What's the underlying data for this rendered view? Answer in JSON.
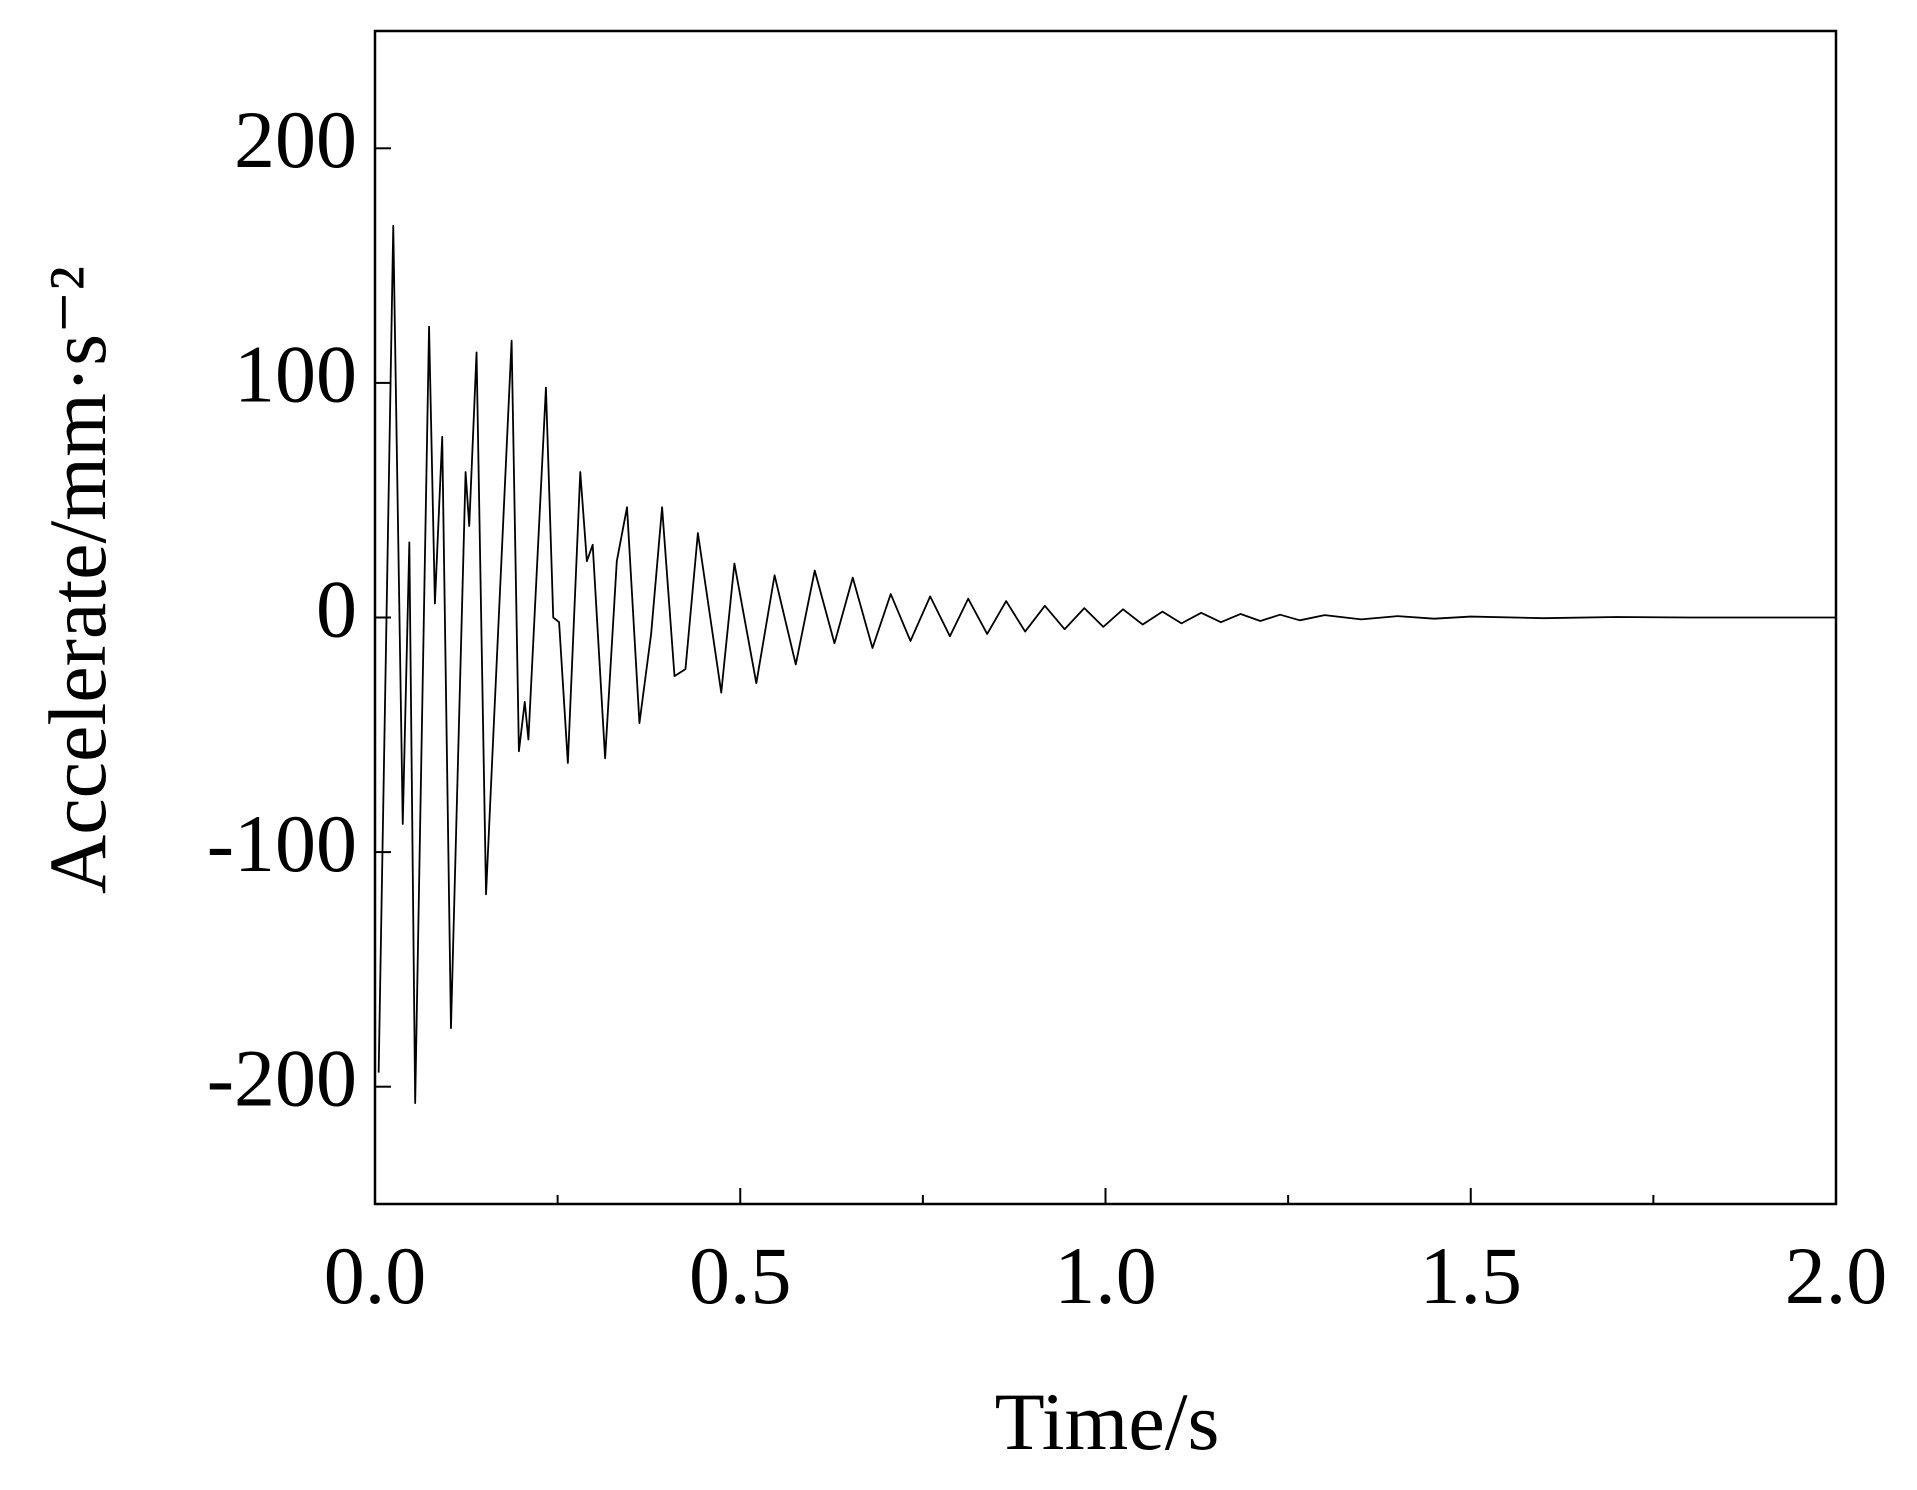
{
  "chart_data": {
    "type": "line",
    "xlabel": "Time/s",
    "ylabel": "Accelerate/mm·s⁻²",
    "xlim": [
      0,
      2
    ],
    "ylim": [
      -250,
      250
    ],
    "xticks": [
      {
        "value": 0,
        "label": "0.0"
      },
      {
        "value": 0.5,
        "label": "0.5"
      },
      {
        "value": 1,
        "label": "1.0"
      },
      {
        "value": 1.5,
        "label": "1.5"
      },
      {
        "value": 2,
        "label": "2.0"
      }
    ],
    "xminorticks": [
      0.25,
      0.75,
      1.25,
      1.75
    ],
    "yticks": [
      -200,
      -100,
      0,
      100,
      200
    ],
    "series": [
      {
        "color": "#000000",
        "x": [
          0.005,
          0.025,
          0.038,
          0.047,
          0.055,
          0.074,
          0.082,
          0.092,
          0.104,
          0.124,
          0.129,
          0.139,
          0.152,
          0.162,
          0.187,
          0.197,
          0.205,
          0.21,
          0.234,
          0.244,
          0.252,
          0.264,
          0.281,
          0.29,
          0.298,
          0.315,
          0.331,
          0.345,
          0.362,
          0.378,
          0.393,
          0.41,
          0.425,
          0.442,
          0.474,
          0.492,
          0.522,
          0.547,
          0.576,
          0.602,
          0.629,
          0.654,
          0.681,
          0.706,
          0.733,
          0.76,
          0.787,
          0.812,
          0.838,
          0.864,
          0.89,
          0.917,
          0.944,
          0.971,
          0.997,
          1.024,
          1.051,
          1.078,
          1.104,
          1.131,
          1.158,
          1.185,
          1.212,
          1.239,
          1.266,
          1.3,
          1.35,
          1.4,
          1.45,
          1.5,
          1.6,
          1.7,
          1.8,
          2.0
        ],
        "values": [
          -194,
          167,
          -88,
          32,
          -207,
          124,
          6,
          77,
          -175,
          62,
          39,
          113,
          -118,
          -50,
          118,
          -57,
          -36,
          -52,
          98,
          0,
          -2,
          -62,
          62,
          24,
          31,
          -60,
          24,
          47,
          -45,
          -7,
          47,
          -25,
          -22,
          36,
          -32,
          23,
          -28,
          18,
          -20,
          20,
          -11,
          17,
          -13,
          10,
          -10,
          9,
          -8,
          8,
          -7,
          7,
          -6,
          5,
          -5,
          4,
          -4,
          3.5,
          -3,
          2.5,
          -2.5,
          2,
          -2,
          1.5,
          -1.5,
          1.2,
          -1.2,
          1,
          -0.8,
          0.6,
          -0.5,
          0.4,
          -0.3,
          0.2,
          0,
          0
        ]
      }
    ]
  }
}
